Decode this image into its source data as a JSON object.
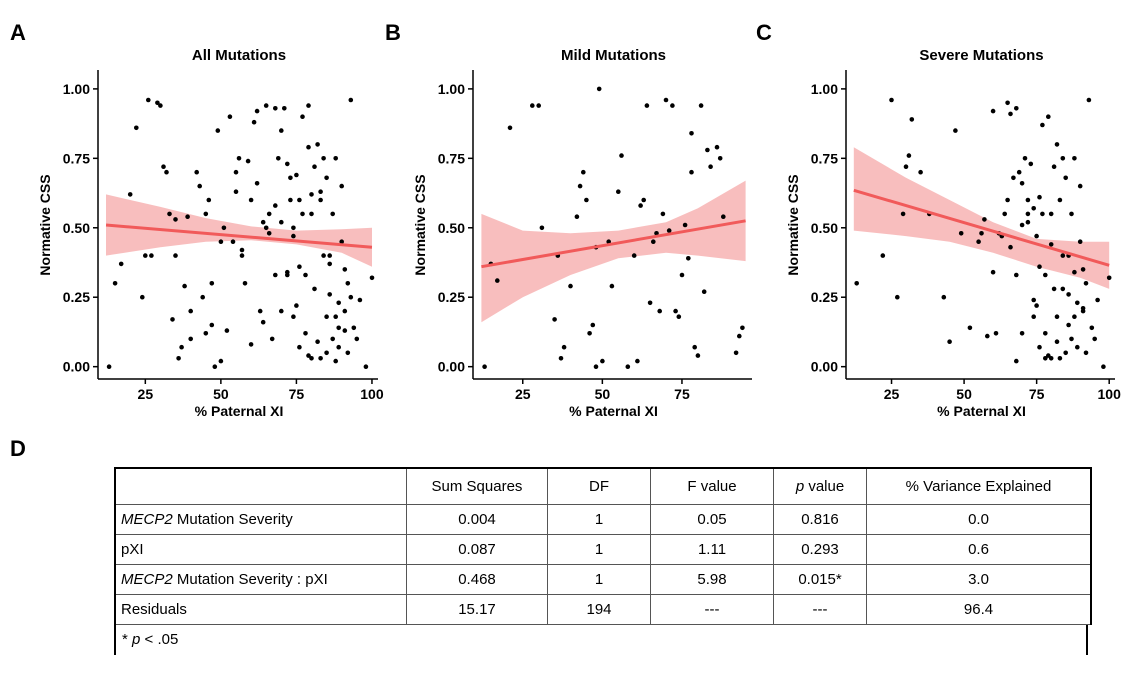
{
  "panel_labels": [
    "A",
    "B",
    "C",
    "D"
  ],
  "chart_data": [
    {
      "type": "scatter",
      "title": "All Mutations",
      "xlabel": "% Paternal XI",
      "ylabel": "Normative CSS",
      "xlim": [
        10,
        102
      ],
      "ylim": [
        -0.03,
        1.05
      ],
      "xticks": [
        25,
        50,
        75,
        100
      ],
      "yticks": [
        0.0,
        0.25,
        0.5,
        0.75,
        1.0
      ],
      "ytick_labels": [
        "0.00",
        "0.25",
        "0.50",
        "0.75",
        "1.00"
      ],
      "fit": {
        "x": [
          12,
          100
        ],
        "y": [
          0.51,
          0.43
        ]
      },
      "ci_lower": [
        [
          12,
          0.4
        ],
        [
          30,
          0.43
        ],
        [
          45,
          0.45
        ],
        [
          60,
          0.455
        ],
        [
          75,
          0.44
        ],
        [
          90,
          0.41
        ],
        [
          100,
          0.36
        ]
      ],
      "ci_upper": [
        [
          12,
          0.62
        ],
        [
          30,
          0.575
        ],
        [
          45,
          0.535
        ],
        [
          60,
          0.505
        ],
        [
          75,
          0.49
        ],
        [
          90,
          0.495
        ],
        [
          100,
          0.5
        ]
      ],
      "points": {
        "x": [
          13,
          15,
          17,
          20,
          22,
          24,
          26,
          27,
          29,
          30,
          31,
          32,
          33,
          34,
          35,
          36,
          37,
          38,
          39,
          40,
          42,
          43,
          44,
          45,
          46,
          47,
          48,
          49,
          50,
          50,
          51,
          52,
          53,
          54,
          55,
          56,
          57,
          58,
          59,
          60,
          61,
          62,
          63,
          64,
          65,
          65,
          66,
          67,
          68,
          68,
          69,
          70,
          70,
          71,
          72,
          72,
          73,
          74,
          74,
          75,
          75,
          76,
          76,
          77,
          77,
          78,
          78,
          79,
          79,
          80,
          80,
          81,
          81,
          82,
          82,
          83,
          83,
          84,
          84,
          85,
          85,
          86,
          86,
          87,
          87,
          88,
          88,
          89,
          89,
          90,
          90,
          91,
          91,
          92,
          92,
          93,
          94,
          95,
          96,
          98,
          100,
          25,
          40,
          55,
          66,
          73,
          79,
          83,
          86,
          89,
          70,
          60,
          45,
          35,
          62,
          68,
          74,
          80,
          85,
          88,
          91,
          93,
          76,
          72,
          64,
          57,
          47
        ],
        "y": [
          0.0,
          0.3,
          0.37,
          0.62,
          0.86,
          0.25,
          0.96,
          0.4,
          0.95,
          0.94,
          0.72,
          0.7,
          0.55,
          0.17,
          0.4,
          0.03,
          0.07,
          0.29,
          0.54,
          0.2,
          0.7,
          0.65,
          0.25,
          0.12,
          0.6,
          0.15,
          0.0,
          0.85,
          0.45,
          0.02,
          0.5,
          0.13,
          0.9,
          0.45,
          0.63,
          0.75,
          0.4,
          0.3,
          0.74,
          0.6,
          0.88,
          0.92,
          0.2,
          0.16,
          0.94,
          0.5,
          0.55,
          0.1,
          0.93,
          0.33,
          0.75,
          0.2,
          0.85,
          0.93,
          0.73,
          0.33,
          0.6,
          0.18,
          0.47,
          0.22,
          0.69,
          0.07,
          0.36,
          0.9,
          0.55,
          0.33,
          0.12,
          0.94,
          0.04,
          0.03,
          0.55,
          0.28,
          0.72,
          0.09,
          0.8,
          0.6,
          0.03,
          0.75,
          0.4,
          0.05,
          0.68,
          0.4,
          0.26,
          0.1,
          0.55,
          0.75,
          0.18,
          0.07,
          0.23,
          0.65,
          0.45,
          0.35,
          0.2,
          0.3,
          0.05,
          0.96,
          0.14,
          0.1,
          0.24,
          0.0,
          0.32,
          0.4,
          0.1,
          0.7,
          0.48,
          0.68,
          0.79,
          0.63,
          0.37,
          0.14,
          0.52,
          0.08,
          0.55,
          0.53,
          0.66,
          0.58,
          0.5,
          0.62,
          0.18,
          0.02,
          0.13,
          0.25,
          0.6,
          0.34,
          0.52,
          0.42,
          0.3
        ]
      }
    },
    {
      "type": "scatter",
      "title": "Mild Mutations",
      "xlabel": "% Paternal XI",
      "ylabel": "Normative CSS",
      "xlim": [
        10,
        97
      ],
      "ylim": [
        -0.03,
        1.05
      ],
      "xticks": [
        25,
        50,
        75
      ],
      "xticks_extra": [
        100
      ],
      "yticks": [
        0.0,
        0.25,
        0.5,
        0.75,
        1.0
      ],
      "ytick_labels": [
        "0.00",
        "0.25",
        "0.50",
        "0.75",
        "1.00"
      ],
      "fit": {
        "x": [
          12,
          95
        ],
        "y": [
          0.36,
          0.525
        ]
      },
      "ci_lower": [
        [
          12,
          0.16
        ],
        [
          25,
          0.25
        ],
        [
          40,
          0.33
        ],
        [
          55,
          0.39
        ],
        [
          70,
          0.41
        ],
        [
          80,
          0.4
        ],
        [
          95,
          0.38
        ]
      ],
      "ci_upper": [
        [
          12,
          0.55
        ],
        [
          25,
          0.49
        ],
        [
          40,
          0.48
        ],
        [
          55,
          0.49
        ],
        [
          70,
          0.52
        ],
        [
          80,
          0.57
        ],
        [
          95,
          0.67
        ]
      ],
      "points": {
        "x": [
          13,
          15,
          17,
          21,
          28,
          30,
          31,
          35,
          36,
          37,
          38,
          40,
          42,
          43,
          44,
          45,
          46,
          47,
          48,
          48,
          49,
          50,
          52,
          53,
          55,
          56,
          58,
          60,
          61,
          62,
          63,
          64,
          65,
          66,
          67,
          68,
          69,
          70,
          71,
          72,
          73,
          74,
          75,
          76,
          77,
          78,
          78,
          79,
          80,
          81,
          82,
          83,
          84,
          86,
          87,
          88,
          92,
          93,
          94
        ],
        "y": [
          0.0,
          0.37,
          0.31,
          0.86,
          0.94,
          0.94,
          0.5,
          0.17,
          0.4,
          0.03,
          0.07,
          0.29,
          0.54,
          0.65,
          0.7,
          0.6,
          0.12,
          0.15,
          0.0,
          0.43,
          1.0,
          0.02,
          0.45,
          0.29,
          0.63,
          0.76,
          0.0,
          0.4,
          0.02,
          0.58,
          0.6,
          0.94,
          0.23,
          0.45,
          0.48,
          0.2,
          0.55,
          0.96,
          0.49,
          0.94,
          0.2,
          0.18,
          0.33,
          0.51,
          0.39,
          0.84,
          0.7,
          0.07,
          0.04,
          0.94,
          0.27,
          0.78,
          0.72,
          0.79,
          0.75,
          0.54,
          0.05,
          0.11,
          0.14
        ]
      }
    },
    {
      "type": "scatter",
      "title": "Severe Mutations",
      "xlabel": "% Paternal XI",
      "ylabel": "Normative CSS",
      "xlim": [
        10,
        102
      ],
      "ylim": [
        -0.03,
        1.05
      ],
      "xticks": [
        25,
        50,
        75,
        100
      ],
      "yticks": [
        0.0,
        0.25,
        0.5,
        0.75,
        1.0
      ],
      "ytick_labels": [
        "0.00",
        "0.25",
        "0.50",
        "0.75",
        "1.00"
      ],
      "fit": {
        "x": [
          12,
          100
        ],
        "y": [
          0.635,
          0.365
        ]
      },
      "ci_lower": [
        [
          12,
          0.49
        ],
        [
          30,
          0.47
        ],
        [
          45,
          0.45
        ],
        [
          60,
          0.41
        ],
        [
          75,
          0.36
        ],
        [
          90,
          0.32
        ],
        [
          100,
          0.28
        ]
      ],
      "ci_upper": [
        [
          12,
          0.79
        ],
        [
          30,
          0.68
        ],
        [
          45,
          0.6
        ],
        [
          60,
          0.52
        ],
        [
          75,
          0.46
        ],
        [
          90,
          0.45
        ],
        [
          100,
          0.45
        ]
      ],
      "points": {
        "x": [
          13,
          22,
          25,
          27,
          29,
          30,
          31,
          32,
          35,
          38,
          43,
          45,
          47,
          49,
          52,
          55,
          56,
          57,
          58,
          60,
          61,
          62,
          63,
          64,
          65,
          65,
          66,
          67,
          68,
          68,
          69,
          70,
          70,
          71,
          72,
          72,
          73,
          74,
          74,
          75,
          75,
          76,
          76,
          77,
          77,
          78,
          78,
          79,
          79,
          80,
          80,
          81,
          81,
          82,
          82,
          83,
          83,
          84,
          84,
          85,
          85,
          86,
          86,
          87,
          87,
          88,
          88,
          89,
          89,
          90,
          90,
          91,
          91,
          92,
          92,
          93,
          94,
          95,
          96,
          98,
          100,
          68,
          74,
          80,
          86,
          88,
          91,
          66,
          72,
          78,
          84,
          60,
          70,
          76,
          82
        ],
        "y": [
          0.3,
          0.4,
          0.96,
          0.25,
          0.55,
          0.72,
          0.76,
          0.89,
          0.7,
          0.55,
          0.25,
          0.09,
          0.85,
          0.48,
          0.14,
          0.45,
          0.48,
          0.53,
          0.11,
          0.92,
          0.12,
          0.48,
          0.47,
          0.55,
          0.95,
          0.6,
          0.91,
          0.68,
          0.93,
          0.33,
          0.7,
          0.12,
          0.66,
          0.75,
          0.55,
          0.6,
          0.73,
          0.18,
          0.24,
          0.47,
          0.22,
          0.07,
          0.36,
          0.87,
          0.55,
          0.33,
          0.12,
          0.9,
          0.04,
          0.03,
          0.55,
          0.28,
          0.72,
          0.09,
          0.8,
          0.6,
          0.03,
          0.75,
          0.4,
          0.05,
          0.68,
          0.4,
          0.26,
          0.1,
          0.55,
          0.75,
          0.18,
          0.07,
          0.23,
          0.65,
          0.45,
          0.35,
          0.2,
          0.3,
          0.05,
          0.96,
          0.14,
          0.1,
          0.24,
          0.0,
          0.32,
          0.02,
          0.57,
          0.44,
          0.15,
          0.34,
          0.21,
          0.43,
          0.52,
          0.03,
          0.28,
          0.34,
          0.51,
          0.61,
          0.18
        ]
      }
    }
  ],
  "table": {
    "headers": [
      "",
      "Sum Squares",
      "DF",
      "F value",
      "p value",
      "% Variance Explained"
    ],
    "rows": [
      {
        "label_italic": "MECP2",
        "label_rest": " Mutation Severity",
        "values": [
          "0.004",
          "1",
          "0.05",
          "0.816",
          "0.0"
        ]
      },
      {
        "label_italic": "",
        "label_rest": "pXI",
        "values": [
          "0.087",
          "1",
          "1.11",
          "0.293",
          "0.6"
        ]
      },
      {
        "label_italic": "MECP2",
        "label_rest": " Mutation Severity : pXI",
        "values": [
          "0.468",
          "1",
          "5.98",
          "0.015*",
          "3.0"
        ]
      },
      {
        "label_italic": "",
        "label_rest": "Residuals",
        "values": [
          "15.17",
          "194",
          "---",
          "---",
          "96.4"
        ]
      }
    ],
    "p_header_italic": "p",
    "p_header_rest": " value",
    "footnote_prefix": "* ",
    "footnote_italic": "p",
    "footnote_rest": " < .05"
  },
  "colors": {
    "fit_line": "#f15a5a",
    "ci_band": "#f7b3b3",
    "points": "#000000"
  }
}
